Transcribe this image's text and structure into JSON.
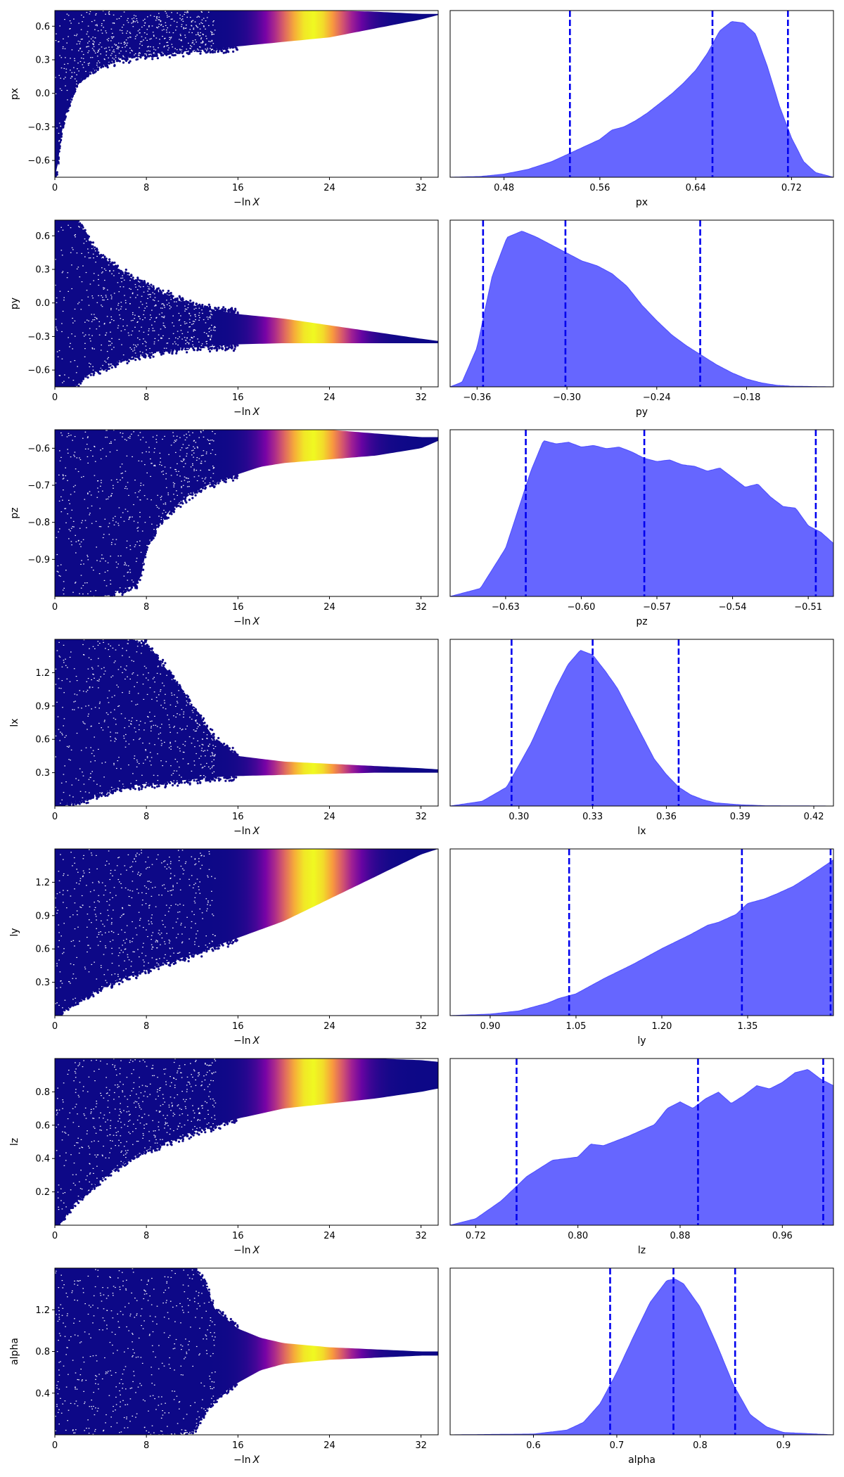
{
  "chart_data": [
    {
      "type": "scatter",
      "ylabel": "px",
      "xlabel_math": true,
      "xlim": [
        0,
        33.5
      ],
      "ylim": [
        -0.75,
        0.74
      ],
      "xticks": [
        "0",
        "8",
        "16",
        "24",
        "32"
      ],
      "xtick_values": [
        0,
        8,
        16,
        24,
        32
      ],
      "yticks": [
        "-0.6",
        "-0.3",
        "0.0",
        "0.3",
        "0.6"
      ],
      "ytick_values": [
        -0.6,
        -0.3,
        0,
        0.3,
        0.6
      ],
      "grid": false,
      "envelope": {
        "x": [
          0,
          0.2,
          0.5,
          1,
          2,
          3,
          4,
          6,
          8,
          12,
          16,
          20,
          24,
          28,
          32,
          33.5
        ],
        "lower": [
          -0.75,
          -0.7,
          -0.4,
          -0.15,
          0.1,
          0.2,
          0.26,
          0.32,
          0.35,
          0.38,
          0.42,
          0.46,
          0.5,
          0.58,
          0.66,
          0.7
        ],
        "upper": [
          0.74,
          0.74,
          0.74,
          0.74,
          0.74,
          0.74,
          0.74,
          0.74,
          0.74,
          0.74,
          0.74,
          0.74,
          0.74,
          0.73,
          0.71,
          0.71
        ]
      }
    },
    {
      "type": "scatter",
      "ylabel": "py",
      "xlabel_math": true,
      "xlim": [
        0,
        33.5
      ],
      "ylim": [
        -0.75,
        0.74
      ],
      "xticks": [
        "0",
        "8",
        "16",
        "24",
        "32"
      ],
      "xtick_values": [
        0,
        8,
        16,
        24,
        32
      ],
      "yticks": [
        "-0.6",
        "-0.3",
        "0.0",
        "0.3",
        "0.6"
      ],
      "ytick_values": [
        -0.6,
        -0.3,
        0,
        0.3,
        0.6
      ],
      "grid": false,
      "envelope": {
        "x": [
          0,
          1,
          2,
          3,
          4,
          6,
          8,
          10,
          12,
          16,
          20,
          24,
          28,
          32,
          33.5
        ],
        "lower": [
          -0.75,
          -0.75,
          -0.7,
          -0.62,
          -0.58,
          -0.5,
          -0.45,
          -0.42,
          -0.4,
          -0.37,
          -0.36,
          -0.36,
          -0.36,
          -0.36,
          -0.36
        ],
        "upper": [
          0.74,
          0.74,
          0.74,
          0.55,
          0.4,
          0.26,
          0.15,
          0.05,
          -0.02,
          -0.1,
          -0.14,
          -0.2,
          -0.26,
          -0.32,
          -0.34
        ]
      }
    },
    {
      "type": "scatter",
      "ylabel": "pz",
      "xlabel_math": true,
      "xlim": [
        0,
        33.5
      ],
      "ylim": [
        -1.0,
        -0.55
      ],
      "xticks": [
        "0",
        "8",
        "16",
        "24",
        "32"
      ],
      "xtick_values": [
        0,
        8,
        16,
        24,
        32
      ],
      "yticks": [
        "-0.9",
        "-0.8",
        "-0.7",
        "-0.6"
      ],
      "ytick_values": [
        -0.9,
        -0.8,
        -0.7,
        -0.6
      ],
      "grid": false,
      "envelope": {
        "x": [
          0,
          3,
          5,
          7,
          7.5,
          8,
          9,
          10,
          12,
          14,
          16,
          18,
          20,
          24,
          28,
          32,
          33.5
        ],
        "lower": [
          -1.0,
          -1.0,
          -0.99,
          -0.97,
          -0.95,
          -0.87,
          -0.81,
          -0.77,
          -0.72,
          -0.69,
          -0.67,
          -0.65,
          -0.64,
          -0.63,
          -0.62,
          -0.6,
          -0.58
        ],
        "upper": [
          -0.55,
          -0.55,
          -0.55,
          -0.55,
          -0.55,
          -0.55,
          -0.55,
          -0.55,
          -0.55,
          -0.55,
          -0.55,
          -0.55,
          -0.55,
          -0.55,
          -0.56,
          -0.57,
          -0.57
        ]
      }
    },
    {
      "type": "scatter",
      "ylabel": "lx",
      "xlabel_math": true,
      "xlim": [
        0,
        33.5
      ],
      "ylim": [
        0,
        1.5
      ],
      "xticks": [
        "0",
        "8",
        "16",
        "24",
        "32"
      ],
      "xtick_values": [
        0,
        8,
        16,
        24,
        32
      ],
      "yticks": [
        "0.3",
        "0.6",
        "0.9",
        "1.2"
      ],
      "ytick_values": [
        0.3,
        0.6,
        0.9,
        1.2
      ],
      "grid": false,
      "envelope": {
        "x": [
          0,
          2,
          4,
          6,
          8,
          10,
          12,
          14,
          16,
          20,
          24,
          28,
          32,
          33.5
        ],
        "lower": [
          0,
          0.05,
          0.12,
          0.18,
          0.2,
          0.22,
          0.24,
          0.26,
          0.27,
          0.28,
          0.29,
          0.3,
          0.3,
          0.3
        ],
        "upper": [
          1.5,
          1.5,
          1.5,
          1.5,
          1.45,
          1.2,
          0.9,
          0.6,
          0.45,
          0.4,
          0.38,
          0.36,
          0.34,
          0.33
        ]
      }
    },
    {
      "type": "scatter",
      "ylabel": "ly",
      "xlabel_math": true,
      "xlim": [
        0,
        33.5
      ],
      "ylim": [
        0,
        1.5
      ],
      "xticks": [
        "0",
        "8",
        "16",
        "24",
        "32"
      ],
      "xtick_values": [
        0,
        8,
        16,
        24,
        32
      ],
      "yticks": [
        "0.3",
        "0.6",
        "0.9",
        "1.2"
      ],
      "ytick_values": [
        0.3,
        0.6,
        0.9,
        1.2
      ],
      "grid": false,
      "envelope": {
        "x": [
          0,
          1,
          2,
          4,
          6,
          8,
          12,
          16,
          20,
          24,
          28,
          32,
          33.5
        ],
        "lower": [
          0,
          0.08,
          0.15,
          0.25,
          0.35,
          0.42,
          0.55,
          0.7,
          0.85,
          1.05,
          1.25,
          1.45,
          1.5
        ],
        "upper": [
          1.5,
          1.5,
          1.5,
          1.5,
          1.5,
          1.5,
          1.5,
          1.5,
          1.5,
          1.5,
          1.5,
          1.5,
          1.5
        ]
      }
    },
    {
      "type": "scatter",
      "ylabel": "lz",
      "xlabel_math": true,
      "xlim": [
        0,
        33.5
      ],
      "ylim": [
        0,
        1.0
      ],
      "xticks": [
        "0",
        "8",
        "16",
        "24",
        "32"
      ],
      "xtick_values": [
        0,
        8,
        16,
        24,
        32
      ],
      "yticks": [
        "0.2",
        "0.4",
        "0.6",
        "0.8"
      ],
      "ytick_values": [
        0.2,
        0.4,
        0.6,
        0.8
      ],
      "grid": false,
      "envelope": {
        "x": [
          0,
          1,
          2,
          4,
          6,
          8,
          12,
          16,
          20,
          24,
          28,
          32,
          33.5
        ],
        "lower": [
          0,
          0.08,
          0.15,
          0.28,
          0.38,
          0.45,
          0.56,
          0.64,
          0.7,
          0.73,
          0.76,
          0.8,
          0.82
        ],
        "upper": [
          1.0,
          1.0,
          1.0,
          1.0,
          1.0,
          1.0,
          1.0,
          1.0,
          1.0,
          1.0,
          1.0,
          0.99,
          0.98
        ]
      }
    },
    {
      "type": "scatter",
      "ylabel": "alpha",
      "xlabel_math": true,
      "xlim": [
        0,
        33.5
      ],
      "ylim": [
        0,
        1.6
      ],
      "xticks": [
        "0",
        "8",
        "16",
        "24",
        "32"
      ],
      "xtick_values": [
        0,
        8,
        16,
        24,
        32
      ],
      "yticks": [
        "0.4",
        "0.8",
        "1.2"
      ],
      "ytick_values": [
        0.4,
        0.8,
        1.2
      ],
      "grid": false,
      "envelope": {
        "x": [
          0,
          4,
          8,
          10,
          12,
          13,
          14,
          16,
          18,
          20,
          24,
          28,
          32,
          33.5
        ],
        "lower": [
          0,
          0,
          0,
          0.01,
          0.03,
          0.18,
          0.35,
          0.5,
          0.62,
          0.68,
          0.72,
          0.74,
          0.76,
          0.76
        ],
        "upper": [
          1.6,
          1.6,
          1.6,
          1.6,
          1.6,
          1.5,
          1.2,
          1.02,
          0.93,
          0.88,
          0.84,
          0.82,
          0.8,
          0.8
        ]
      }
    },
    {
      "type": "area",
      "xlabel": "px",
      "xlim": [
        0.435,
        0.755
      ],
      "xticks": [
        "0.48",
        "0.56",
        "0.64",
        "0.72"
      ],
      "xtick_values": [
        0.48,
        0.56,
        0.64,
        0.72
      ],
      "quantile_lines": [
        0.535,
        0.654,
        0.717
      ],
      "grid": false,
      "x": [
        0.435,
        0.46,
        0.48,
        0.5,
        0.52,
        0.54,
        0.56,
        0.57,
        0.58,
        0.59,
        0.6,
        0.61,
        0.62,
        0.63,
        0.64,
        0.65,
        0.66,
        0.67,
        0.68,
        0.69,
        0.7,
        0.71,
        0.72,
        0.73,
        0.74,
        0.755
      ],
      "y": [
        0,
        0.005,
        0.02,
        0.05,
        0.1,
        0.17,
        0.24,
        0.3,
        0.32,
        0.36,
        0.41,
        0.47,
        0.53,
        0.6,
        0.68,
        0.79,
        0.93,
        0.99,
        0.98,
        0.91,
        0.7,
        0.45,
        0.25,
        0.1,
        0.03,
        0
      ]
    },
    {
      "type": "area",
      "xlabel": "py",
      "xlim": [
        -0.378,
        -0.122
      ],
      "xticks": [
        "-0.36",
        "-0.30",
        "-0.24",
        "-0.18"
      ],
      "xtick_values": [
        -0.36,
        -0.3,
        -0.24,
        -0.18
      ],
      "quantile_lines": [
        -0.356,
        -0.301,
        -0.211
      ],
      "grid": false,
      "x": [
        -0.378,
        -0.37,
        -0.36,
        -0.35,
        -0.34,
        -0.33,
        -0.32,
        -0.31,
        -0.3,
        -0.29,
        -0.28,
        -0.27,
        -0.26,
        -0.25,
        -0.24,
        -0.23,
        -0.22,
        -0.21,
        -0.2,
        -0.19,
        -0.18,
        -0.17,
        -0.16,
        -0.15,
        -0.122
      ],
      "y": [
        0,
        0.03,
        0.25,
        0.7,
        0.95,
        0.99,
        0.95,
        0.9,
        0.85,
        0.8,
        0.77,
        0.72,
        0.64,
        0.52,
        0.42,
        0.33,
        0.26,
        0.2,
        0.14,
        0.09,
        0.05,
        0.025,
        0.01,
        0.004,
        0
      ]
    },
    {
      "type": "area",
      "xlabel": "pz",
      "xlim": [
        -0.652,
        -0.5
      ],
      "xticks": [
        "-0.63",
        "-0.60",
        "-0.57",
        "-0.54",
        "-0.51"
      ],
      "xtick_values": [
        -0.63,
        -0.6,
        -0.57,
        -0.54,
        -0.51
      ],
      "quantile_lines": [
        -0.622,
        -0.575,
        -0.507
      ],
      "grid": false,
      "x": [
        -0.652,
        -0.64,
        -0.63,
        -0.62,
        -0.615,
        -0.61,
        -0.605,
        -0.6,
        -0.595,
        -0.59,
        -0.585,
        -0.58,
        -0.575,
        -0.57,
        -0.565,
        -0.56,
        -0.555,
        -0.55,
        -0.545,
        -0.54,
        -0.535,
        -0.53,
        -0.525,
        -0.52,
        -0.515,
        -0.51,
        -0.505,
        -0.5
      ],
      "y": [
        0,
        0.05,
        0.3,
        0.78,
        0.97,
        0.95,
        0.96,
        0.93,
        0.94,
        0.92,
        0.93,
        0.9,
        0.86,
        0.84,
        0.85,
        0.82,
        0.81,
        0.78,
        0.8,
        0.74,
        0.68,
        0.7,
        0.62,
        0.56,
        0.55,
        0.44,
        0.4,
        0.33
      ]
    },
    {
      "type": "area",
      "xlabel": "lx",
      "xlim": [
        0.272,
        0.428
      ],
      "xticks": [
        "0.30",
        "0.33",
        "0.36",
        "0.39",
        "0.42"
      ],
      "xtick_values": [
        0.3,
        0.33,
        0.36,
        0.39,
        0.42
      ],
      "quantile_lines": [
        0.297,
        0.33,
        0.365
      ],
      "grid": false,
      "x": [
        0.272,
        0.285,
        0.295,
        0.305,
        0.315,
        0.32,
        0.325,
        0.33,
        0.335,
        0.34,
        0.345,
        0.35,
        0.355,
        0.36,
        0.365,
        0.37,
        0.375,
        0.38,
        0.39,
        0.4,
        0.428
      ],
      "y": [
        0,
        0.03,
        0.12,
        0.4,
        0.75,
        0.9,
        0.99,
        0.96,
        0.86,
        0.75,
        0.6,
        0.45,
        0.3,
        0.2,
        0.12,
        0.07,
        0.04,
        0.02,
        0.008,
        0.002,
        0
      ]
    },
    {
      "type": "area",
      "xlabel": "ly",
      "xlim": [
        0.83,
        1.5
      ],
      "xticks": [
        "0.90",
        "1.05",
        "1.20",
        "1.35"
      ],
      "xtick_values": [
        0.9,
        1.05,
        1.2,
        1.35
      ],
      "quantile_lines": [
        1.038,
        1.34,
        1.495
      ],
      "grid": false,
      "x": [
        0.83,
        0.9,
        0.95,
        1.0,
        1.02,
        1.05,
        1.08,
        1.1,
        1.15,
        1.2,
        1.25,
        1.28,
        1.3,
        1.33,
        1.35,
        1.38,
        1.4,
        1.43,
        1.46,
        1.48,
        1.5
      ],
      "y": [
        0,
        0.01,
        0.03,
        0.08,
        0.11,
        0.14,
        0.2,
        0.24,
        0.33,
        0.43,
        0.52,
        0.58,
        0.6,
        0.65,
        0.72,
        0.75,
        0.78,
        0.83,
        0.9,
        0.95,
        1.0
      ]
    },
    {
      "type": "area",
      "xlabel": "lz",
      "xlim": [
        0.7,
        1.0
      ],
      "xticks": [
        "0.72",
        "0.80",
        "0.88",
        "0.96"
      ],
      "xtick_values": [
        0.72,
        0.8,
        0.88,
        0.96
      ],
      "quantile_lines": [
        0.752,
        0.894,
        0.992
      ],
      "grid": false,
      "x": [
        0.7,
        0.72,
        0.74,
        0.76,
        0.78,
        0.8,
        0.81,
        0.82,
        0.84,
        0.86,
        0.87,
        0.88,
        0.89,
        0.9,
        0.91,
        0.92,
        0.93,
        0.94,
        0.95,
        0.96,
        0.97,
        0.98,
        0.99,
        1.0
      ],
      "y": [
        0,
        0.04,
        0.15,
        0.3,
        0.4,
        0.42,
        0.5,
        0.49,
        0.55,
        0.62,
        0.72,
        0.76,
        0.72,
        0.78,
        0.82,
        0.75,
        0.8,
        0.86,
        0.84,
        0.88,
        0.94,
        0.96,
        0.9,
        0.86
      ]
    },
    {
      "type": "area",
      "xlabel": "alpha",
      "xlim": [
        0.5,
        0.96
      ],
      "xticks": [
        "0.6",
        "0.7",
        "0.8",
        "0.9"
      ],
      "xtick_values": [
        0.6,
        0.7,
        0.8,
        0.9
      ],
      "quantile_lines": [
        0.692,
        0.768,
        0.842
      ],
      "grid": false,
      "x": [
        0.5,
        0.6,
        0.64,
        0.66,
        0.68,
        0.7,
        0.72,
        0.74,
        0.76,
        0.77,
        0.78,
        0.8,
        0.82,
        0.84,
        0.86,
        0.88,
        0.9,
        0.96
      ],
      "y": [
        0,
        0.005,
        0.03,
        0.08,
        0.2,
        0.4,
        0.63,
        0.85,
        0.99,
        1.0,
        0.97,
        0.82,
        0.58,
        0.32,
        0.13,
        0.05,
        0.015,
        0
      ]
    }
  ]
}
